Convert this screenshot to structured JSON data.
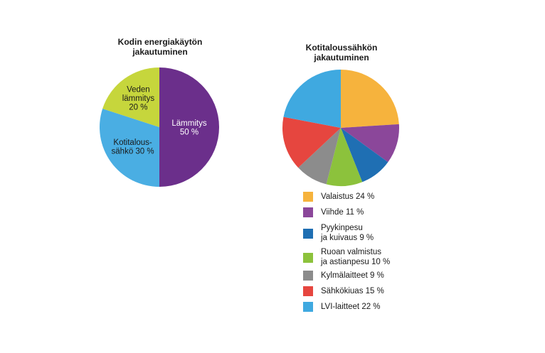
{
  "chart_data": [
    {
      "type": "pie",
      "title": [
        "Kodin energiakäytön",
        "jakautuminen"
      ],
      "slices": [
        {
          "label": [
            "Lämmitys",
            "50 %"
          ],
          "value": 50,
          "color": "#6b2f8b",
          "text_color": "#ffffff"
        },
        {
          "label": [
            "Kotitalous-",
            "sähkö 30 %"
          ],
          "value": 30,
          "color": "#4aaee3",
          "text_color": "#1a1a1a"
        },
        {
          "label": [
            "Veden",
            "lämmitys",
            "20 %"
          ],
          "value": 20,
          "color": "#c6d63c",
          "text_color": "#1a1a1a"
        }
      ]
    },
    {
      "type": "pie",
      "title": [
        "Kotitaloussähkön",
        "jakautuminen"
      ],
      "slices": [
        {
          "label": [
            "Valaistus 24 %"
          ],
          "value": 24,
          "color": "#f6b33d"
        },
        {
          "label": [
            "Viihde 11 %"
          ],
          "value": 11,
          "color": "#8b479a"
        },
        {
          "label": [
            "Pyykinpesu",
            "ja kuivaus 9 %"
          ],
          "value": 9,
          "color": "#1f6fb3"
        },
        {
          "label": [
            "Ruoan valmistus",
            "ja astianpesu 10 %"
          ],
          "value": 10,
          "color": "#8cc23c"
        },
        {
          "label": [
            "Kylmälaitteet 9 %"
          ],
          "value": 9,
          "color": "#8c8c8c"
        },
        {
          "label": [
            "Sähkökiuas 15 %"
          ],
          "value": 15,
          "color": "#e6463f"
        },
        {
          "label": [
            "LVI-laitteet 22 %"
          ],
          "value": 22,
          "color": "#3fa9e0"
        }
      ]
    }
  ]
}
